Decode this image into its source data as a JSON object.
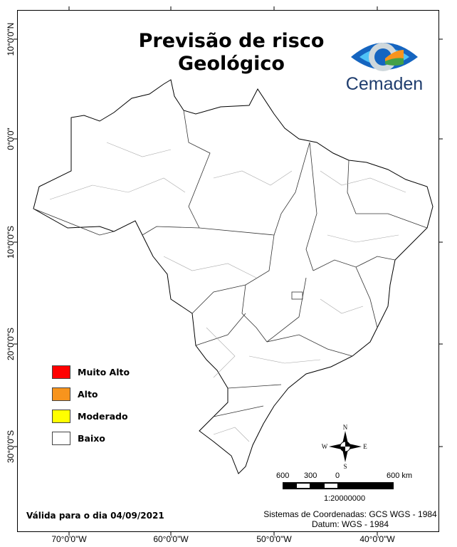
{
  "map": {
    "title_line1": "Previsão de risco",
    "title_line2": "Geológico",
    "logo_text": "Cemaden",
    "latitude_labels": [
      "10°0'0\"N",
      "0°0'0\"",
      "10°0'0\"S",
      "20°0'0\"S",
      "30°0'0\"S"
    ],
    "longitude_labels": [
      "70°0'0\"W",
      "60°0'0\"W",
      "50°0'0\"W",
      "40°0'0\"W"
    ],
    "legend": [
      {
        "label": "Muito Alto",
        "color": "#ff0000"
      },
      {
        "label": "Alto",
        "color": "#f7941d"
      },
      {
        "label": "Moderado",
        "color": "#ffff00"
      },
      {
        "label": "Baixo",
        "color": "#ffffff"
      }
    ],
    "compass": {
      "n": "N",
      "s": "S",
      "e": "E",
      "w": "W"
    },
    "scale_labels": [
      "600",
      "300",
      "0",
      "600 km"
    ],
    "scale_ratio": "1:20000000",
    "coord_system": "Sistemas de Coordenadas: GCS WGS - 1984",
    "datum": "Datum: WGS - 1984",
    "valid_date": "Válida para o dia 04/09/2021"
  }
}
